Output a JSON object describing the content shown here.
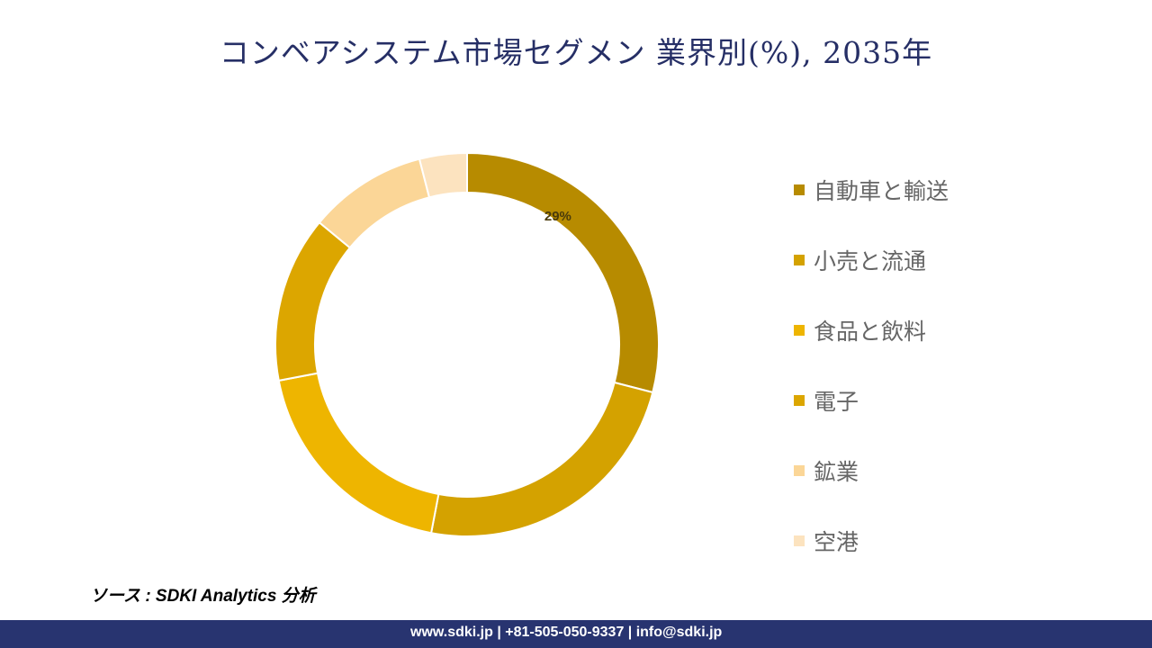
{
  "chart_data": {
    "type": "pie",
    "subtype": "donut",
    "title": "コンベアシステム市場セグメン 業界別(%), 2035年",
    "categories": [
      "自動車と輸送",
      "小売と流通",
      "食品と飲料",
      "電子",
      "鉱業",
      "空港"
    ],
    "values": [
      29,
      24,
      19,
      14,
      10,
      4
    ],
    "colors": [
      "#b78b00",
      "#d4a200",
      "#eeb500",
      "#dca600",
      "#fbd697",
      "#fce3bf"
    ],
    "data_labels": [
      {
        "index": 0,
        "text": "29%"
      }
    ],
    "legend_position": "right"
  },
  "source": "ソース : SDKI Analytics 分析",
  "footer": "www.sdki.jp | +81-505-050-9337 | info@sdki.jp"
}
